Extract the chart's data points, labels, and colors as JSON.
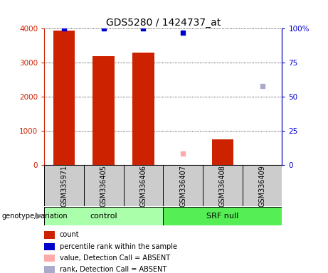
{
  "title": "GDS5280 / 1424737_at",
  "samples": [
    "GSM335971",
    "GSM336405",
    "GSM336406",
    "GSM336407",
    "GSM336408",
    "GSM336409"
  ],
  "bar_values": [
    3950,
    3200,
    3300,
    0,
    750,
    10
  ],
  "bar_color": "#cc2200",
  "blue_dot_values_pct": [
    100,
    100,
    100,
    97,
    null,
    null
  ],
  "blue_dot_color": "#0000cc",
  "absent_value_values": [
    null,
    null,
    null,
    350,
    null,
    null
  ],
  "absent_value_color": "#ffaaaa",
  "absent_rank_values_pct": [
    null,
    null,
    null,
    null,
    null,
    58
  ],
  "absent_rank_color": "#aaaacc",
  "ylim_left": [
    0,
    4000
  ],
  "ylim_right": [
    0,
    100
  ],
  "yticks_left": [
    0,
    1000,
    2000,
    3000,
    4000
  ],
  "ytick_labels_left": [
    "0",
    "1000",
    "2000",
    "3000",
    "4000"
  ],
  "yticks_right": [
    0,
    25,
    50,
    75,
    100
  ],
  "ytick_labels_right": [
    "0",
    "25",
    "50",
    "75",
    "100%"
  ],
  "left_tick_color": "#cc2200",
  "right_tick_color": "#0000cc",
  "group_label": "genotype/variation",
  "group_colors": {
    "control": "#aaffaa",
    "SRF null": "#55ee55"
  },
  "legend_items": [
    {
      "label": "count",
      "color": "#cc2200"
    },
    {
      "label": "percentile rank within the sample",
      "color": "#0000cc"
    },
    {
      "label": "value, Detection Call = ABSENT",
      "color": "#ffaaaa"
    },
    {
      "label": "rank, Detection Call = ABSENT",
      "color": "#aaaacc"
    }
  ],
  "bar_width": 0.55,
  "bg_color": "#ffffff",
  "sample_bg_color": "#cccccc"
}
